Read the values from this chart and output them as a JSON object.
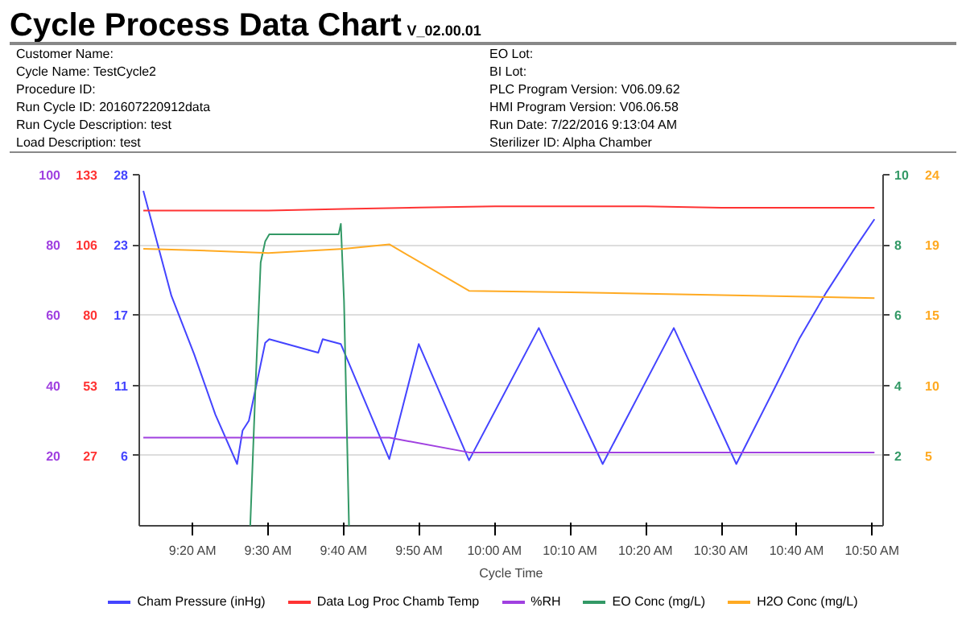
{
  "chart_data": [
    {
      "type": "line",
      "title": "Cycle Process Data Chart",
      "subtitle": "V_02.00.01",
      "xlabel": "Cycle Time",
      "annotations": [
        "Customer Name:",
        "Cycle Name: TestCycle2",
        "Procedure ID:",
        "Run Cycle ID: 201607220912data",
        "Run Cycle Description: test",
        "Load Description: test",
        "EO Lot:",
        "BI Lot:",
        "PLC Program Version: V06.09.62",
        "HMI Program Version: V06.06.58",
        "Run Date: 7/22/2016 9:13:04 AM",
        "Sterilizer ID: Alpha Chamber"
      ],
      "xlim": [
        9.215,
        10.857
      ],
      "xticks": [
        {
          "value": 9.3333,
          "label": "9:20 AM"
        },
        {
          "value": 9.5,
          "label": "9:30 AM"
        },
        {
          "value": 9.6667,
          "label": "9:40 AM"
        },
        {
          "value": 9.8333,
          "label": "9:50 AM"
        },
        {
          "value": 10.0,
          "label": "10:00 AM"
        },
        {
          "value": 10.1667,
          "label": "10:10 AM"
        },
        {
          "value": 10.3333,
          "label": "10:20 AM"
        },
        {
          "value": 10.5,
          "label": "10:30 AM"
        },
        {
          "value": 10.6667,
          "label": "10:40 AM"
        },
        {
          "value": 10.8333,
          "label": "10:50 AM"
        }
      ],
      "ylim": [
        0,
        28.4
      ],
      "yticks": [
        {
          "value": 5.68,
          "label": "6"
        },
        {
          "value": 11.36,
          "label": "11"
        },
        {
          "value": 17.04,
          "label": "17"
        },
        {
          "value": 22.72,
          "label": "23"
        },
        {
          "value": 28.4,
          "label": "28"
        }
      ],
      "y2lim": [
        0,
        133
      ],
      "y2ticks": [
        {
          "value": 26.6,
          "label": "27"
        },
        {
          "value": 53.2,
          "label": "53"
        },
        {
          "value": 79.8,
          "label": "80"
        },
        {
          "value": 106.4,
          "label": "106"
        },
        133
      ],
      "y3lim": [
        0,
        100
      ],
      "y3ticks": [
        20,
        40,
        60,
        80,
        100
      ],
      "grid": "y",
      "legend": "bottom",
      "marker": "none",
      "line_style": "solid",
      "series": [
        {
          "name": "Cham Pressure (inHg)",
          "color": "#4444ff",
          "x": [
            9.224,
            9.286,
            9.336,
            9.383,
            9.431,
            9.443,
            9.457,
            9.493,
            9.502,
            9.61,
            9.62,
            9.66,
            9.767,
            9.832,
            9.943,
            10.097,
            10.238,
            10.395,
            10.533,
            10.613,
            10.673,
            10.732,
            10.79,
            10.838
          ],
          "values": [
            27.1,
            18.6,
            13.9,
            9.0,
            5.0,
            7.7,
            8.5,
            14.8,
            15.1,
            14.0,
            15.1,
            14.7,
            5.4,
            14.7,
            5.3,
            16.0,
            5.0,
            16.0,
            5.0,
            10.8,
            15.2,
            18.9,
            22.2,
            24.8
          ]
        },
        {
          "name": "Data Log Proc Chamb Temp",
          "color": "#ff3333",
          "axis": "y2",
          "x": [
            9.224,
            9.5,
            9.667,
            9.833,
            10.0,
            10.333,
            10.5,
            10.838
          ],
          "values": [
            119.4,
            119.4,
            120,
            120.6,
            121,
            121,
            120.5,
            120.5
          ]
        },
        {
          "name": "%RH",
          "color": "#a040e0",
          "axis": "y3",
          "x": [
            9.224,
            9.767,
            9.943,
            10.838
          ],
          "values": [
            25.1,
            25.1,
            20.9,
            20.9
          ]
        }
      ]
    },
    {
      "type": "line",
      "xlim": [
        9.215,
        10.857
      ],
      "tick_labels": "y",
      "ylim": [
        0,
        10
      ],
      "yticks": [
        2,
        4,
        6,
        8,
        10
      ],
      "y2lim": [
        0,
        24.2
      ],
      "y2ticks": [
        {
          "value": 4.84,
          "label": "5"
        },
        {
          "value": 9.68,
          "label": "10"
        },
        {
          "value": 14.52,
          "label": "15"
        },
        {
          "value": 19.36,
          "label": "19"
        },
        {
          "value": 24.2,
          "label": "24"
        }
      ],
      "legend": "bottom",
      "marker": "none",
      "line_style": "solid",
      "series": [
        {
          "name": "EO Conc (mg/L)",
          "color": "#339966",
          "x": [
            9.46,
            9.472,
            9.483,
            9.493,
            9.502,
            9.655,
            9.66,
            9.667,
            9.678
          ],
          "values": [
            0,
            4.1,
            7.5,
            8.1,
            8.3,
            8.3,
            8.6,
            6.4,
            0
          ]
        },
        {
          "name": "H2O Conc (mg/L)",
          "color": "#ffaa22",
          "axis": "y2",
          "x": [
            9.224,
            9.333,
            9.5,
            9.667,
            9.767,
            9.943,
            10.167,
            10.333,
            10.5,
            10.667,
            10.838
          ],
          "values": [
            19.1,
            19.0,
            18.8,
            19.1,
            19.4,
            16.2,
            16.1,
            16.0,
            15.9,
            15.8,
            15.7
          ]
        }
      ]
    }
  ]
}
